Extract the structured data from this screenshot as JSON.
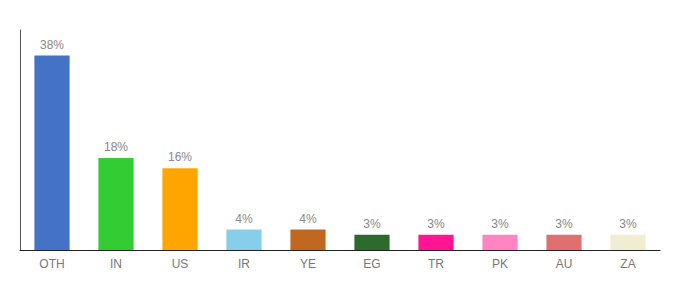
{
  "chart_data": {
    "type": "bar",
    "categories": [
      "OTH",
      "IN",
      "US",
      "IR",
      "YE",
      "EG",
      "TR",
      "PK",
      "AU",
      "ZA"
    ],
    "values": [
      38,
      18,
      16,
      4,
      4,
      3,
      3,
      3,
      3,
      3
    ],
    "value_labels": [
      "38%",
      "18%",
      "16%",
      "4%",
      "4%",
      "3%",
      "3%",
      "3%",
      "3%",
      "3%"
    ],
    "colors": [
      "#4472C4",
      "#33CC33",
      "#FFA500",
      "#87CEEB",
      "#C06820",
      "#2D6A2D",
      "#FF1493",
      "#FF85C2",
      "#E07070",
      "#F0EDD0"
    ],
    "ylim": [
      0,
      43
    ],
    "data_labels": true,
    "tick_labels": "x",
    "grid": false
  }
}
